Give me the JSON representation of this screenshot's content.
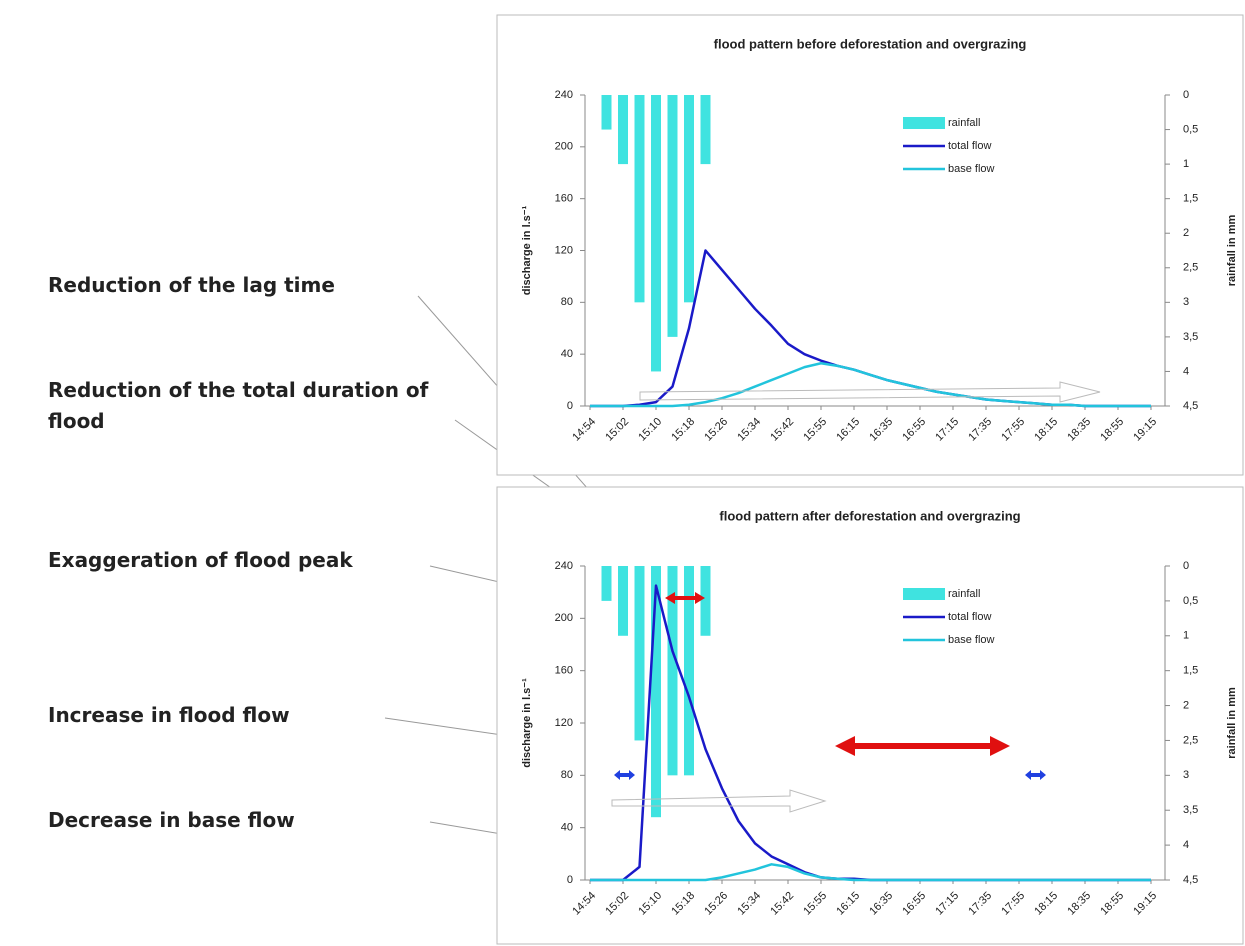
{
  "annotations": [
    "Reduction of the lag time",
    "Reduction of the total duration of flood",
    "Exaggeration of flood peak",
    "Increase in flood flow",
    "Decrease in base flow"
  ],
  "chart_data": [
    {
      "type": "bar-line",
      "title": "flood pattern before deforestation and overgrazing",
      "categories": [
        "14:54",
        null,
        "15:02",
        null,
        "15:10",
        null,
        "15:18",
        null,
        "15:26",
        null,
        "15:34",
        null,
        "15:42",
        null,
        "15:55",
        null,
        "16:15",
        null,
        "16:35",
        null,
        "16:55",
        null,
        "17:15",
        null,
        "17:35",
        null,
        "17:55",
        null,
        "18:15",
        null,
        "18:35",
        null,
        "18:55",
        null,
        "19:15"
      ],
      "series": [
        {
          "name": "rainfall",
          "type": "bar",
          "axis": "y2",
          "color": "#3fe3e0",
          "values": [
            0,
            0.5,
            1,
            3,
            4,
            3.5,
            3,
            1,
            0,
            0,
            0,
            0,
            0,
            0,
            0,
            0,
            0,
            0,
            0,
            0,
            0,
            0,
            0,
            0,
            0,
            0,
            0,
            0,
            0,
            0,
            0,
            0,
            0,
            0,
            0
          ]
        },
        {
          "name": "total flow",
          "type": "line",
          "color": "#1a1ac8",
          "values": [
            0,
            0,
            0,
            1,
            3,
            15,
            60,
            120,
            105,
            90,
            75,
            62,
            48,
            40,
            35,
            31,
            28,
            24,
            20,
            17,
            14,
            11,
            9,
            7,
            5,
            4,
            3,
            2,
            1,
            1,
            0,
            0,
            0,
            0,
            0
          ]
        },
        {
          "name": "base flow",
          "type": "line",
          "color": "#22c4dc",
          "values": [
            0,
            0,
            0,
            0,
            0,
            0,
            1,
            3,
            6,
            10,
            15,
            20,
            25,
            30,
            33,
            31,
            28,
            24,
            20,
            17,
            14,
            11,
            9,
            7,
            5,
            4,
            3,
            2,
            1,
            1,
            0,
            0,
            0,
            0,
            0
          ]
        }
      ],
      "y_label": "discharge in l.s⁻¹",
      "y2_label": "rainfall in mm",
      "ylim": [
        0,
        240
      ],
      "yticks": [
        0,
        40,
        80,
        120,
        160,
        200,
        240
      ],
      "y2lim": [
        4.5,
        0
      ],
      "y2ticks": [
        0,
        {
          "value": 0.5,
          "label": "0,5"
        },
        1,
        {
          "value": 1.5,
          "label": "1,5"
        },
        2,
        {
          "value": 2.5,
          "label": "2,5"
        },
        3,
        {
          "value": 3.5,
          "label": "3,5"
        },
        4,
        {
          "value": 4.5,
          "label": "4,5"
        }
      ],
      "legend": "upper right"
    },
    {
      "type": "bar-line",
      "title": "flood pattern after deforestation and overgrazing",
      "categories": [
        "14:54",
        null,
        "15:02",
        null,
        "15:10",
        null,
        "15:18",
        null,
        "15:26",
        null,
        "15:34",
        null,
        "15:42",
        null,
        "15:55",
        null,
        "16:15",
        null,
        "16:35",
        null,
        "16:55",
        null,
        "17:15",
        null,
        "17:35",
        null,
        "17:55",
        null,
        "18:15",
        null,
        "18:35",
        null,
        "18:55",
        null,
        "19:15"
      ],
      "series": [
        {
          "name": "rainfall",
          "type": "bar",
          "axis": "y2",
          "color": "#3fe3e0",
          "values": [
            0,
            0.5,
            1,
            2.5,
            3.6,
            3,
            3,
            1,
            0,
            0,
            0,
            0,
            0,
            0,
            0,
            0,
            0,
            0,
            0,
            0,
            0,
            0,
            0,
            0,
            0,
            0,
            0,
            0,
            0,
            0,
            0,
            0,
            0,
            0,
            0
          ]
        },
        {
          "name": "total flow",
          "type": "line",
          "color": "#1a1ac8",
          "values": [
            0,
            0,
            0,
            10,
            225,
            175,
            140,
            100,
            70,
            45,
            28,
            18,
            12,
            6,
            2,
            1,
            1,
            0,
            0,
            0,
            0,
            0,
            0,
            0,
            0,
            0,
            0,
            0,
            0,
            0,
            0,
            0,
            0,
            0,
            0
          ]
        },
        {
          "name": "base flow",
          "type": "line",
          "color": "#22c4dc",
          "values": [
            0,
            0,
            0,
            0,
            0,
            0,
            0,
            0,
            2,
            5,
            8,
            12,
            10,
            5,
            2,
            1,
            0,
            0,
            0,
            0,
            0,
            0,
            0,
            0,
            0,
            0,
            0,
            0,
            0,
            0,
            0,
            0,
            0,
            0,
            0
          ]
        }
      ],
      "y_label": "discharge in l.s⁻¹",
      "y2_label": "rainfall in mm",
      "ylim": [
        0,
        240
      ],
      "yticks": [
        0,
        40,
        80,
        120,
        160,
        200,
        240
      ],
      "y2lim": [
        4.5,
        0
      ],
      "y2ticks": [
        0,
        {
          "value": 0.5,
          "label": "0,5"
        },
        1,
        {
          "value": 1.5,
          "label": "1,5"
        },
        2,
        {
          "value": 2.5,
          "label": "2,5"
        },
        3,
        {
          "value": 3.5,
          "label": "3,5"
        },
        4,
        {
          "value": 4.5,
          "label": "4,5"
        }
      ],
      "legend": "upper right"
    }
  ]
}
